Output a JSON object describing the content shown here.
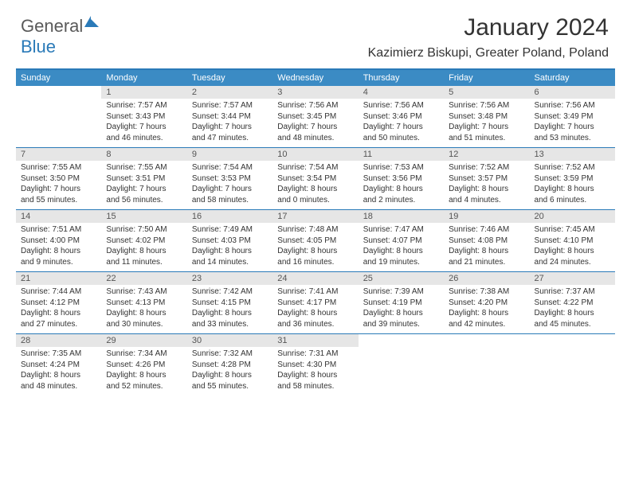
{
  "brand": {
    "part1": "General",
    "part2": "Blue"
  },
  "title": "January 2024",
  "location": "Kazimierz Biskupi, Greater Poland, Poland",
  "colors": {
    "headerBg": "#3b8bc4",
    "ruleColor": "#2a7ab8",
    "dayNumBg": "#e6e6e6",
    "text": "#333333",
    "white": "#ffffff"
  },
  "dayHeaders": [
    "Sunday",
    "Monday",
    "Tuesday",
    "Wednesday",
    "Thursday",
    "Friday",
    "Saturday"
  ],
  "weeks": [
    [
      {
        "n": "",
        "lines": []
      },
      {
        "n": "1",
        "lines": [
          "Sunrise: 7:57 AM",
          "Sunset: 3:43 PM",
          "Daylight: 7 hours",
          "and 46 minutes."
        ]
      },
      {
        "n": "2",
        "lines": [
          "Sunrise: 7:57 AM",
          "Sunset: 3:44 PM",
          "Daylight: 7 hours",
          "and 47 minutes."
        ]
      },
      {
        "n": "3",
        "lines": [
          "Sunrise: 7:56 AM",
          "Sunset: 3:45 PM",
          "Daylight: 7 hours",
          "and 48 minutes."
        ]
      },
      {
        "n": "4",
        "lines": [
          "Sunrise: 7:56 AM",
          "Sunset: 3:46 PM",
          "Daylight: 7 hours",
          "and 50 minutes."
        ]
      },
      {
        "n": "5",
        "lines": [
          "Sunrise: 7:56 AM",
          "Sunset: 3:48 PM",
          "Daylight: 7 hours",
          "and 51 minutes."
        ]
      },
      {
        "n": "6",
        "lines": [
          "Sunrise: 7:56 AM",
          "Sunset: 3:49 PM",
          "Daylight: 7 hours",
          "and 53 minutes."
        ]
      }
    ],
    [
      {
        "n": "7",
        "lines": [
          "Sunrise: 7:55 AM",
          "Sunset: 3:50 PM",
          "Daylight: 7 hours",
          "and 55 minutes."
        ]
      },
      {
        "n": "8",
        "lines": [
          "Sunrise: 7:55 AM",
          "Sunset: 3:51 PM",
          "Daylight: 7 hours",
          "and 56 minutes."
        ]
      },
      {
        "n": "9",
        "lines": [
          "Sunrise: 7:54 AM",
          "Sunset: 3:53 PM",
          "Daylight: 7 hours",
          "and 58 minutes."
        ]
      },
      {
        "n": "10",
        "lines": [
          "Sunrise: 7:54 AM",
          "Sunset: 3:54 PM",
          "Daylight: 8 hours",
          "and 0 minutes."
        ]
      },
      {
        "n": "11",
        "lines": [
          "Sunrise: 7:53 AM",
          "Sunset: 3:56 PM",
          "Daylight: 8 hours",
          "and 2 minutes."
        ]
      },
      {
        "n": "12",
        "lines": [
          "Sunrise: 7:52 AM",
          "Sunset: 3:57 PM",
          "Daylight: 8 hours",
          "and 4 minutes."
        ]
      },
      {
        "n": "13",
        "lines": [
          "Sunrise: 7:52 AM",
          "Sunset: 3:59 PM",
          "Daylight: 8 hours",
          "and 6 minutes."
        ]
      }
    ],
    [
      {
        "n": "14",
        "lines": [
          "Sunrise: 7:51 AM",
          "Sunset: 4:00 PM",
          "Daylight: 8 hours",
          "and 9 minutes."
        ]
      },
      {
        "n": "15",
        "lines": [
          "Sunrise: 7:50 AM",
          "Sunset: 4:02 PM",
          "Daylight: 8 hours",
          "and 11 minutes."
        ]
      },
      {
        "n": "16",
        "lines": [
          "Sunrise: 7:49 AM",
          "Sunset: 4:03 PM",
          "Daylight: 8 hours",
          "and 14 minutes."
        ]
      },
      {
        "n": "17",
        "lines": [
          "Sunrise: 7:48 AM",
          "Sunset: 4:05 PM",
          "Daylight: 8 hours",
          "and 16 minutes."
        ]
      },
      {
        "n": "18",
        "lines": [
          "Sunrise: 7:47 AM",
          "Sunset: 4:07 PM",
          "Daylight: 8 hours",
          "and 19 minutes."
        ]
      },
      {
        "n": "19",
        "lines": [
          "Sunrise: 7:46 AM",
          "Sunset: 4:08 PM",
          "Daylight: 8 hours",
          "and 21 minutes."
        ]
      },
      {
        "n": "20",
        "lines": [
          "Sunrise: 7:45 AM",
          "Sunset: 4:10 PM",
          "Daylight: 8 hours",
          "and 24 minutes."
        ]
      }
    ],
    [
      {
        "n": "21",
        "lines": [
          "Sunrise: 7:44 AM",
          "Sunset: 4:12 PM",
          "Daylight: 8 hours",
          "and 27 minutes."
        ]
      },
      {
        "n": "22",
        "lines": [
          "Sunrise: 7:43 AM",
          "Sunset: 4:13 PM",
          "Daylight: 8 hours",
          "and 30 minutes."
        ]
      },
      {
        "n": "23",
        "lines": [
          "Sunrise: 7:42 AM",
          "Sunset: 4:15 PM",
          "Daylight: 8 hours",
          "and 33 minutes."
        ]
      },
      {
        "n": "24",
        "lines": [
          "Sunrise: 7:41 AM",
          "Sunset: 4:17 PM",
          "Daylight: 8 hours",
          "and 36 minutes."
        ]
      },
      {
        "n": "25",
        "lines": [
          "Sunrise: 7:39 AM",
          "Sunset: 4:19 PM",
          "Daylight: 8 hours",
          "and 39 minutes."
        ]
      },
      {
        "n": "26",
        "lines": [
          "Sunrise: 7:38 AM",
          "Sunset: 4:20 PM",
          "Daylight: 8 hours",
          "and 42 minutes."
        ]
      },
      {
        "n": "27",
        "lines": [
          "Sunrise: 7:37 AM",
          "Sunset: 4:22 PM",
          "Daylight: 8 hours",
          "and 45 minutes."
        ]
      }
    ],
    [
      {
        "n": "28",
        "lines": [
          "Sunrise: 7:35 AM",
          "Sunset: 4:24 PM",
          "Daylight: 8 hours",
          "and 48 minutes."
        ]
      },
      {
        "n": "29",
        "lines": [
          "Sunrise: 7:34 AM",
          "Sunset: 4:26 PM",
          "Daylight: 8 hours",
          "and 52 minutes."
        ]
      },
      {
        "n": "30",
        "lines": [
          "Sunrise: 7:32 AM",
          "Sunset: 4:28 PM",
          "Daylight: 8 hours",
          "and 55 minutes."
        ]
      },
      {
        "n": "31",
        "lines": [
          "Sunrise: 7:31 AM",
          "Sunset: 4:30 PM",
          "Daylight: 8 hours",
          "and 58 minutes."
        ]
      },
      {
        "n": "",
        "lines": []
      },
      {
        "n": "",
        "lines": []
      },
      {
        "n": "",
        "lines": []
      }
    ]
  ]
}
